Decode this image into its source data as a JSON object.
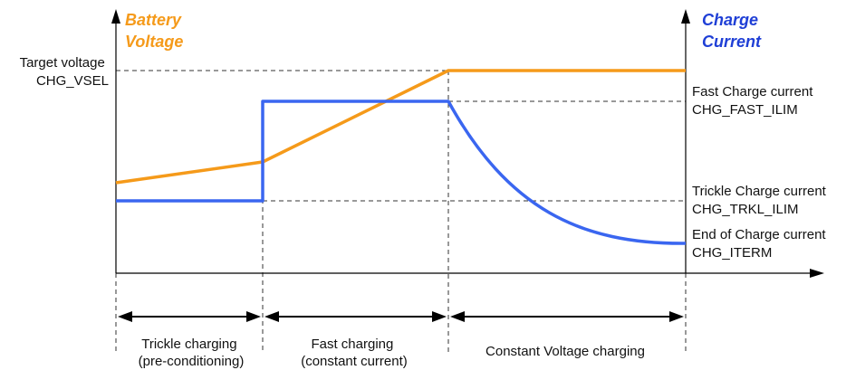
{
  "axes": {
    "left_title": [
      "Battery",
      "Voltage"
    ],
    "right_title": [
      "Charge",
      "Current"
    ]
  },
  "labels": {
    "target_voltage": [
      "Target voltage",
      "CHG_VSEL"
    ],
    "fast_current": [
      "Fast Charge current",
      "CHG_FAST_ILIM"
    ],
    "trickle_current": [
      "Trickle Charge current",
      "CHG_TRKL_ILIM"
    ],
    "end_current": [
      "End of Charge current",
      "CHG_ITERM"
    ]
  },
  "phases": {
    "trickle": [
      "Trickle charging",
      "(pre-conditioning)"
    ],
    "fast": [
      "Fast charging",
      "(constant current)"
    ],
    "cv": "Constant Voltage charging"
  },
  "colors": {
    "voltage": "#f59a1a",
    "current": "#3a66f0",
    "axis": "#000000",
    "dashed": "#333333"
  }
}
